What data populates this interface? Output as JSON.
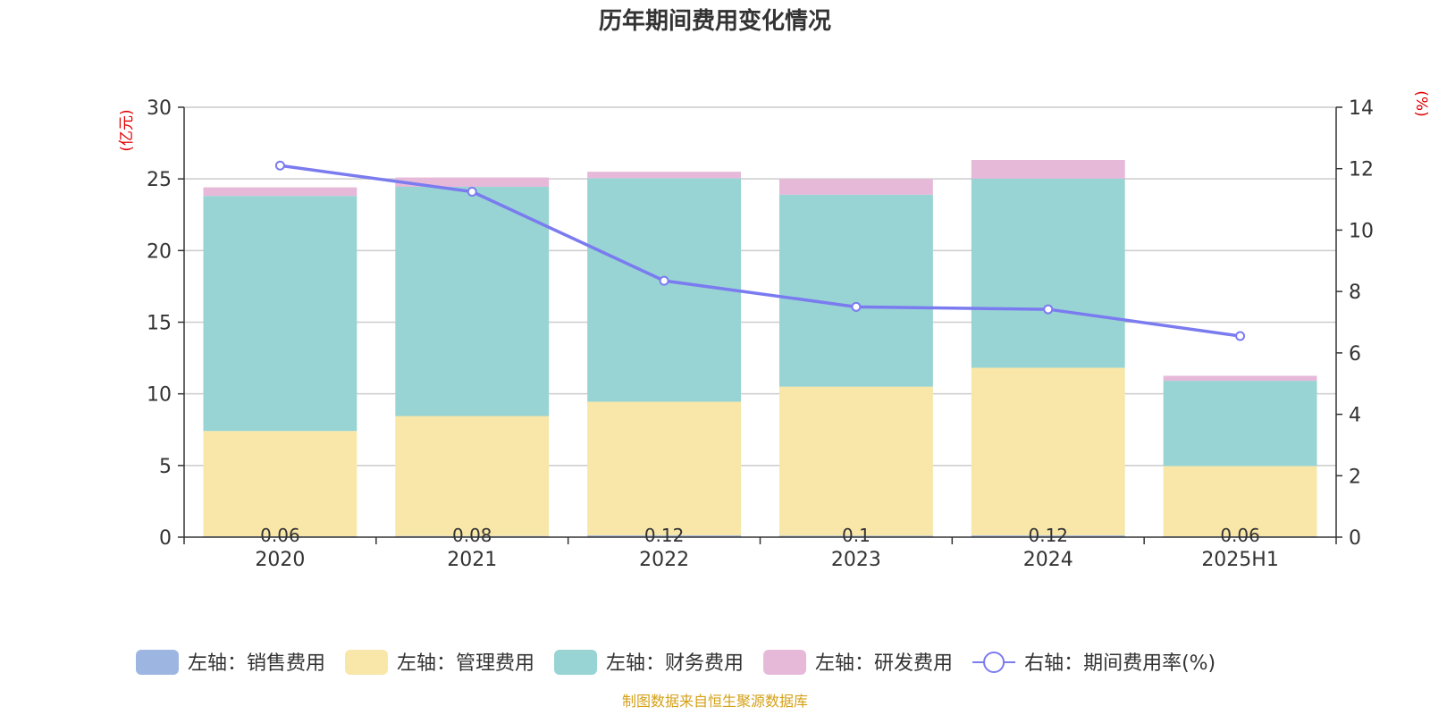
{
  "chart_data": {
    "type": "bar",
    "title": "历年期间费用变化情况",
    "categories": [
      "2020",
      "2021",
      "2022",
      "2023",
      "2024",
      "2025H1"
    ],
    "y_left": {
      "unit": "(亿元)",
      "lim": [
        0,
        30
      ],
      "ticks": [
        "0",
        "5",
        "10",
        "15",
        "20",
        "25",
        "30"
      ]
    },
    "y_right": {
      "unit": "(%)",
      "lim": [
        0,
        14
      ],
      "ticks": [
        "0",
        "2",
        "4",
        "6",
        "8",
        "10",
        "12",
        "14"
      ]
    },
    "stacked": true,
    "grid": true,
    "legend_position": "bottom",
    "series": [
      {
        "name": "左轴：销售费用",
        "type": "bar",
        "axis": "left",
        "color": "#9db6e1",
        "values": [
          0.06,
          0.08,
          0.12,
          0.1,
          0.12,
          0.06
        ],
        "labels": [
          "0.06",
          "0.08",
          "0.12",
          "0.1",
          "0.12",
          "0.06"
        ]
      },
      {
        "name": "左轴：管理费用",
        "type": "bar",
        "axis": "left",
        "color": "#f8e7a9",
        "values": [
          7.35,
          8.37,
          9.33,
          10.4,
          11.7,
          4.9
        ]
      },
      {
        "name": "左轴：财务费用",
        "type": "bar",
        "axis": "left",
        "color": "#98d4d4",
        "values": [
          16.4,
          16.0,
          15.6,
          13.4,
          13.2,
          5.95
        ]
      },
      {
        "name": "左轴：研发费用",
        "type": "bar",
        "axis": "left",
        "color": "#e6b9d9",
        "values": [
          0.6,
          0.65,
          0.45,
          1.1,
          1.3,
          0.35
        ]
      },
      {
        "name": "右轴：期间费用率(%)",
        "type": "line",
        "axis": "right",
        "color": "#7b7bf0",
        "values": [
          12.1,
          11.25,
          8.35,
          7.5,
          7.42,
          6.55
        ]
      }
    ]
  },
  "source": "制图数据来自恒生聚源数据库"
}
